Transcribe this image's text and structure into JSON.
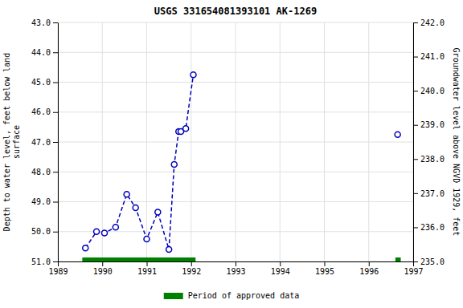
{
  "chart_data": {
    "type": "line",
    "title": "USGS 331654081393101 AK-1269",
    "ylabel": "Depth to water level, feet below land\nsurface",
    "y2label": "Groundwater level above NGVD 1929, feet",
    "xlim": [
      1989,
      1997
    ],
    "xticks": [
      1989,
      1990,
      1991,
      1992,
      1993,
      1994,
      1995,
      1996,
      1997
    ],
    "ylim": [
      51.0,
      43.0
    ],
    "yticks": [
      {
        "value": 43.0,
        "label": "43.0"
      },
      {
        "value": 44.0,
        "label": "44.0"
      },
      {
        "value": 45.0,
        "label": "45.0"
      },
      {
        "value": 46.0,
        "label": "46.0"
      },
      {
        "value": 47.0,
        "label": "47.0"
      },
      {
        "value": 48.0,
        "label": "48.0"
      },
      {
        "value": 49.0,
        "label": "49.0"
      },
      {
        "value": 50.0,
        "label": "50.0"
      },
      {
        "value": 51.0,
        "label": "51.0"
      }
    ],
    "y2lim": [
      235.0,
      242.0
    ],
    "y2ticks": [
      {
        "value": 242.0,
        "label": "242.0"
      },
      {
        "value": 241.0,
        "label": "241.0"
      },
      {
        "value": 240.0,
        "label": "240.0"
      },
      {
        "value": 239.0,
        "label": "239.0"
      },
      {
        "value": 238.0,
        "label": "238.0"
      },
      {
        "value": 237.0,
        "label": "237.0"
      },
      {
        "value": 236.0,
        "label": "236.0"
      },
      {
        "value": 235.0,
        "label": "235.0"
      }
    ],
    "grid": true,
    "legend": "bottom",
    "series": [
      {
        "type": "line",
        "color": "#0000bb",
        "marker": "open-circle",
        "line_style": "dashed",
        "x": [
          1989.62,
          1989.87,
          1990.05,
          1990.3,
          1990.55,
          1990.75,
          1991.0,
          1991.25,
          1991.5,
          1991.62,
          1991.72,
          1991.77,
          1991.88,
          1992.05
        ],
        "values": [
          50.55,
          50.0,
          50.05,
          49.85,
          48.75,
          49.2,
          50.25,
          49.35,
          50.6,
          47.75,
          46.65,
          46.65,
          46.55,
          44.75
        ]
      },
      {
        "type": "line",
        "color": "#0000bb",
        "marker": "open-circle",
        "line_style": "none",
        "x": [
          1996.65
        ],
        "values": [
          46.75
        ]
      },
      {
        "type": "span",
        "name": "Period of approved data",
        "color": "#008000",
        "x": [
          [
            1989.55,
            1992.1
          ],
          [
            1996.6,
            1996.72
          ]
        ],
        "values": [
          51.0,
          51.0
        ]
      }
    ]
  }
}
